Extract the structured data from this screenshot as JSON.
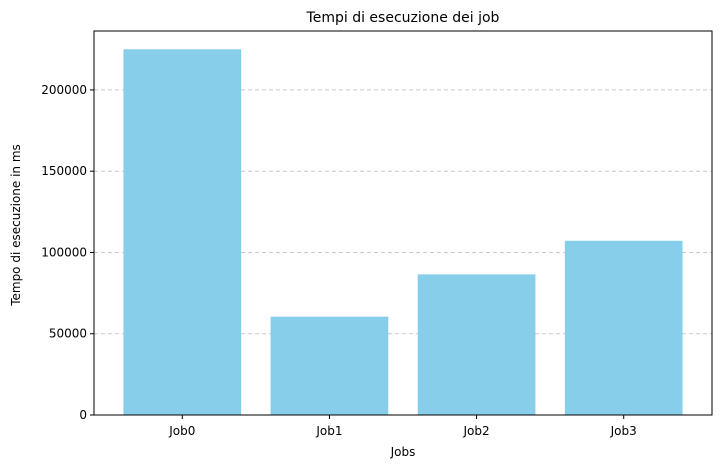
{
  "chart_data": {
    "type": "bar",
    "title": "Tempi di esecuzione dei job",
    "xlabel": "Jobs",
    "ylabel": "Tempo di esecuzione in ms",
    "categories": [
      "Job0",
      "Job1",
      "Job2",
      "Job3"
    ],
    "values": [
      225000,
      60500,
      86500,
      107200
    ],
    "ylim": [
      0,
      236250
    ],
    "yticks": [
      0,
      50000,
      100000,
      150000,
      200000
    ],
    "ytick_labels": [
      "0",
      "50000",
      "100000",
      "150000",
      "200000"
    ],
    "grid": "y-dashed",
    "bar_color": "#87ceeb",
    "grid_color": "#c8c8c8"
  }
}
